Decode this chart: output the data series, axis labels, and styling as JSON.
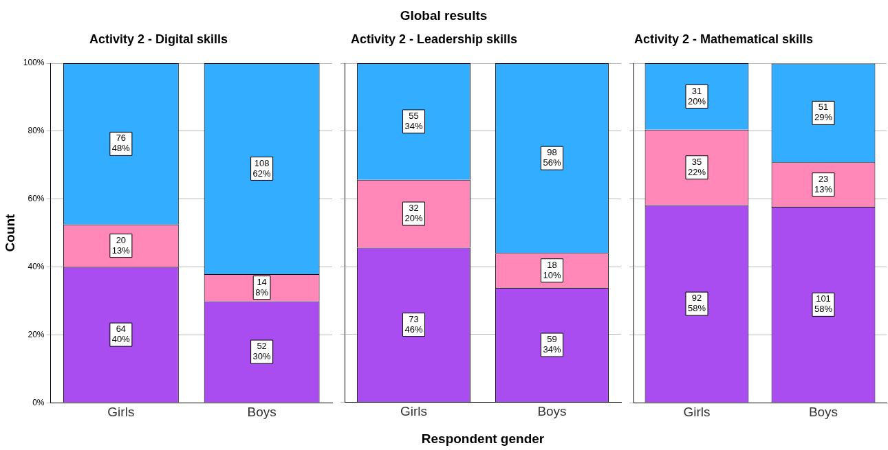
{
  "chart_data": [
    {
      "type": "bar",
      "title": "Activity 2 - Digital skills",
      "ylabel": "Count",
      "categories": [
        "Girls",
        "Boys"
      ],
      "stacked": true,
      "grid": "y",
      "ylim": [
        0,
        100
      ],
      "yticks": [
        {
          "value": 0,
          "label": "0%"
        },
        {
          "value": 20,
          "label": "20%"
        },
        {
          "value": 40,
          "label": "40%"
        },
        {
          "value": 60,
          "label": "60%"
        },
        {
          "value": 80,
          "label": "80%"
        },
        {
          "value": 100,
          "label": "100%"
        }
      ],
      "series": [
        {
          "color": "#a94cf0",
          "values": [
            40,
            29.9
          ],
          "value_labels": [
            "64\n40%",
            "52\n30%"
          ]
        },
        {
          "color": "#ff88b8",
          "values": [
            12.5,
            8
          ],
          "value_labels": [
            "20\n13%",
            "14\n8%"
          ]
        },
        {
          "color": "#33adff",
          "values": [
            47.5,
            62.1
          ],
          "value_labels": [
            "76\n48%",
            "108\n62%"
          ]
        }
      ]
    },
    {
      "type": "bar",
      "title": "Activity 2 - Leadership skills",
      "xlabel": "Respondent gender",
      "annotations": [
        "Global results"
      ],
      "categories": [
        "Girls",
        "Boys"
      ],
      "stacked": true,
      "grid": "y",
      "tick_labels": "x",
      "ylim": [
        0,
        100
      ],
      "yticks": [
        0,
        20,
        40,
        60,
        80,
        100
      ],
      "series": [
        {
          "color": "#a94cf0",
          "values": [
            45.6,
            33.7
          ],
          "value_labels": [
            "73\n46%",
            "59\n34%"
          ]
        },
        {
          "color": "#ff88b8",
          "values": [
            20,
            10.3
          ],
          "value_labels": [
            "32\n20%",
            "18\n10%"
          ]
        },
        {
          "color": "#33adff",
          "values": [
            34.4,
            56
          ],
          "value_labels": [
            "55\n34%",
            "98\n56%"
          ]
        }
      ]
    },
    {
      "type": "bar",
      "title": "Activity 2 - Mathematical skills",
      "categories": [
        "Girls",
        "Boys"
      ],
      "stacked": true,
      "grid": "y",
      "tick_labels": "x",
      "ylim": [
        0,
        100
      ],
      "yticks": [
        0,
        20,
        40,
        60,
        80,
        100
      ],
      "series": [
        {
          "color": "#a94cf0",
          "values": [
            58.2,
            57.7
          ],
          "value_labels": [
            "92\n58%",
            "101\n58%"
          ]
        },
        {
          "color": "#ff88b8",
          "values": [
            22.2,
            13.1
          ],
          "value_labels": [
            "35\n22%",
            "23\n13%"
          ]
        },
        {
          "color": "#33adff",
          "values": [
            19.6,
            29.1
          ],
          "value_labels": [
            "31\n20%",
            "51\n29%"
          ]
        }
      ]
    }
  ]
}
